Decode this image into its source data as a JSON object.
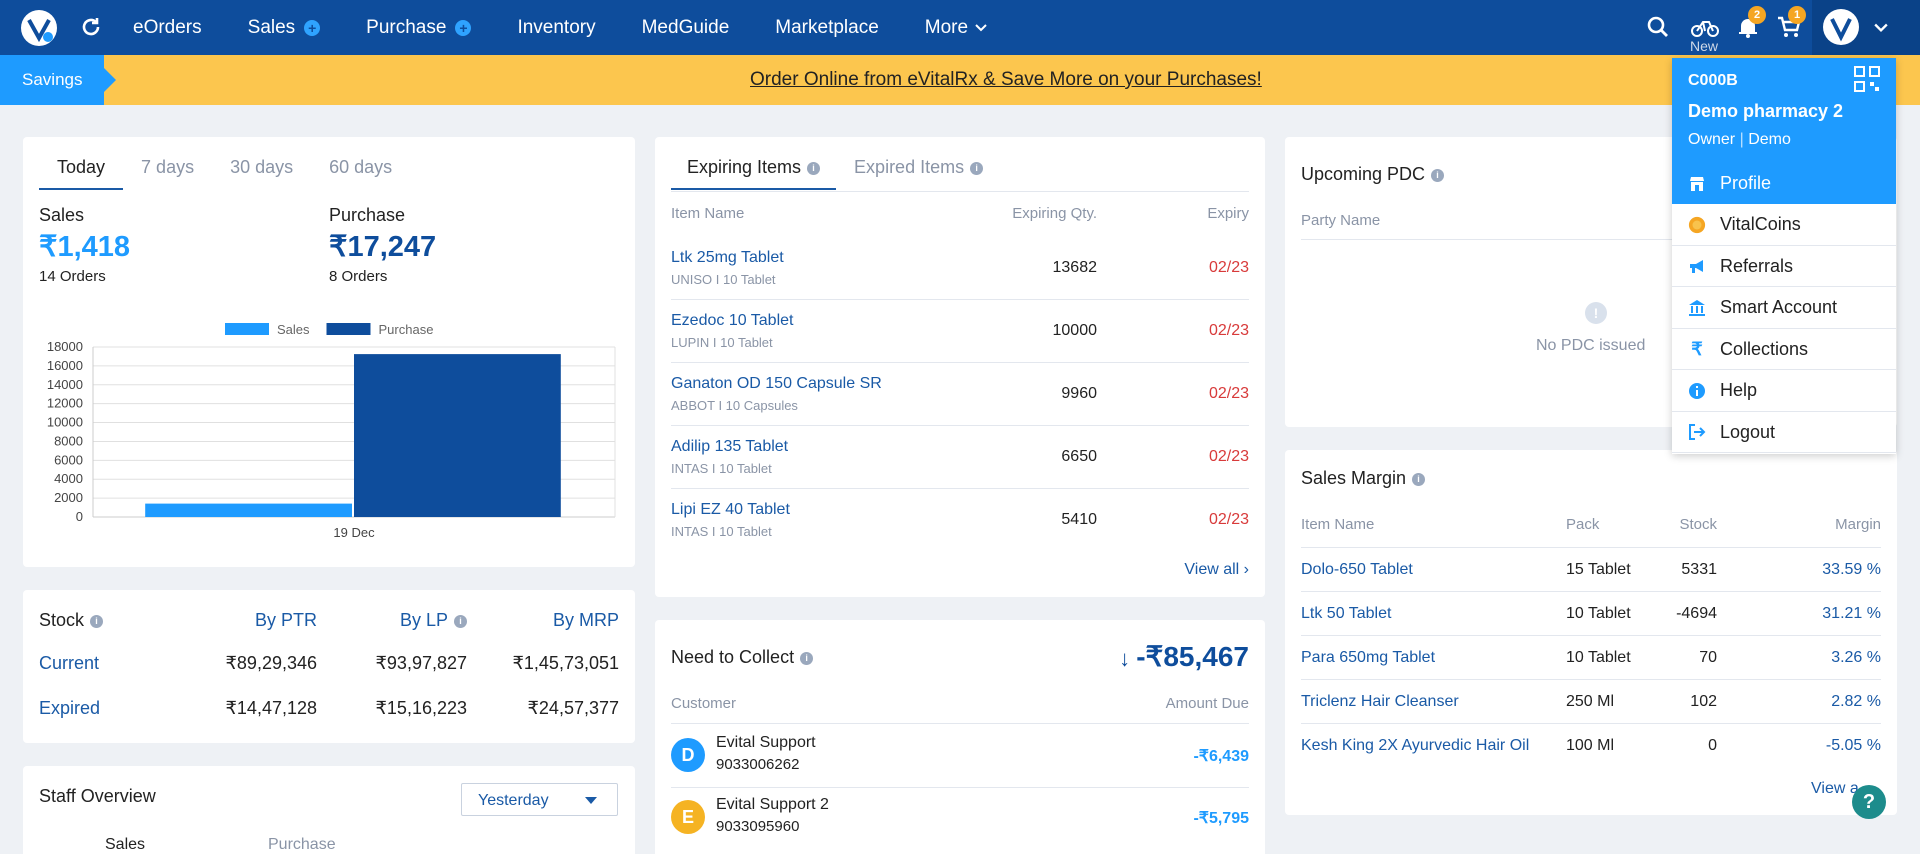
{
  "nav": {
    "items": [
      "eOrders",
      "Sales",
      "Purchase",
      "Inventory",
      "MedGuide",
      "Marketplace",
      "More"
    ],
    "notifications_count": "2",
    "cart_count": "1",
    "new_label": "New"
  },
  "banner": {
    "savings_label": "Savings",
    "link_text": "Order Online from eVitalRx & Save More on your Purchases!"
  },
  "summary": {
    "tabs": [
      "Today",
      "7 days",
      "30 days",
      "60 days"
    ],
    "active_tab": "Today",
    "sales_label": "Sales",
    "sales_value": "₹1,418",
    "sales_orders": "14 Orders",
    "purchase_label": "Purchase",
    "purchase_value": "₹17,247",
    "purchase_orders": "8 Orders"
  },
  "chart_data": {
    "type": "bar",
    "categories": [
      "19 Dec"
    ],
    "series": [
      {
        "name": "Sales",
        "values": [
          1418
        ],
        "color": "#1e9bff"
      },
      {
        "name": "Purchase",
        "values": [
          17247
        ],
        "color": "#0e4d9c"
      }
    ],
    "yticks": [
      0,
      2000,
      4000,
      6000,
      8000,
      10000,
      12000,
      14000,
      16000,
      18000
    ],
    "ylim": [
      0,
      18000
    ],
    "legend": "top",
    "grid": true
  },
  "stock": {
    "title": "Stock",
    "headers": [
      "By PTR",
      "By LP",
      "By MRP"
    ],
    "rows": [
      {
        "label": "Current",
        "values": [
          "₹89,29,346",
          "₹93,97,827",
          "₹1,45,73,051"
        ]
      },
      {
        "label": "Expired",
        "values": [
          "₹14,47,128",
          "₹15,16,223",
          "₹24,57,377"
        ]
      }
    ]
  },
  "staff": {
    "title": "Staff Overview",
    "period": "Yesterday",
    "tabs": [
      "Sales",
      "Purchase"
    ]
  },
  "expiring": {
    "tabs": [
      "Expiring Items",
      "Expired Items"
    ],
    "headers": [
      "Item Name",
      "Expiring Qty.",
      "Expiry"
    ],
    "rows": [
      {
        "name": "Ltk 25mg Tablet",
        "sub": "UNISO I 10 Tablet",
        "qty": "13682",
        "expiry": "02/23"
      },
      {
        "name": "Ezedoc 10 Tablet",
        "sub": "LUPIN I 10 Tablet",
        "qty": "10000",
        "expiry": "02/23"
      },
      {
        "name": "Ganaton OD 150 Capsule SR",
        "sub": "ABBOT I 10 Capsules",
        "qty": "9960",
        "expiry": "02/23"
      },
      {
        "name": "Adilip 135 Tablet",
        "sub": "INTAS I 10 Tablet",
        "qty": "6650",
        "expiry": "02/23"
      },
      {
        "name": "Lipi EZ 40 Tablet",
        "sub": "INTAS I 10 Tablet",
        "qty": "5410",
        "expiry": "02/23"
      }
    ],
    "view_all": "View all"
  },
  "collect": {
    "title": "Need to Collect",
    "total": "-₹85,467",
    "headers": [
      "Customer",
      "Amount Due"
    ],
    "rows": [
      {
        "initial": "D",
        "name": "Evital Support",
        "phone": "9033006262",
        "amount": "-₹6,439",
        "color": "#1e9bff"
      },
      {
        "initial": "E",
        "name": "Evital Support 2",
        "phone": "9033095960",
        "amount": "-₹5,795",
        "color": "#f5b323"
      }
    ]
  },
  "pdc": {
    "title": "Upcoming PDC",
    "header": "Party Name",
    "empty": "No PDC issued"
  },
  "margin": {
    "title": "Sales Margin",
    "headers": [
      "Item Name",
      "Pack",
      "Stock",
      "Margin"
    ],
    "rows": [
      {
        "name": "Dolo-650 Tablet",
        "pack": "15 Tablet",
        "stock": "5331",
        "margin": "33.59 %"
      },
      {
        "name": "Ltk 50 Tablet",
        "pack": "10 Tablet",
        "stock": "-4694",
        "margin": "31.21 %"
      },
      {
        "name": "Para 650mg Tablet",
        "pack": "10 Tablet",
        "stock": "70",
        "margin": "3.26 %"
      },
      {
        "name": "Triclenz Hair Cleanser",
        "pack": "250 Ml",
        "stock": "102",
        "margin": "2.82 %"
      },
      {
        "name": "Kesh King 2X Ayurvedic Hair Oil",
        "pack": "100 Ml",
        "stock": "0",
        "margin": "-5.05 %"
      }
    ],
    "view_all": "View a"
  },
  "profile_menu": {
    "code": "C000B",
    "pharmacy": "Demo pharmacy 2",
    "role": "Owner",
    "user": "Demo",
    "items": [
      {
        "label": "Profile",
        "icon": "store-icon"
      },
      {
        "label": "VitalCoins",
        "icon": "coin-icon"
      },
      {
        "label": "Referrals",
        "icon": "megaphone-icon"
      },
      {
        "label": "Smart Account",
        "icon": "bank-icon"
      },
      {
        "label": "Collections",
        "icon": "rupee-icon"
      },
      {
        "label": "Help",
        "icon": "info-icon"
      },
      {
        "label": "Logout",
        "icon": "logout-icon"
      }
    ]
  }
}
